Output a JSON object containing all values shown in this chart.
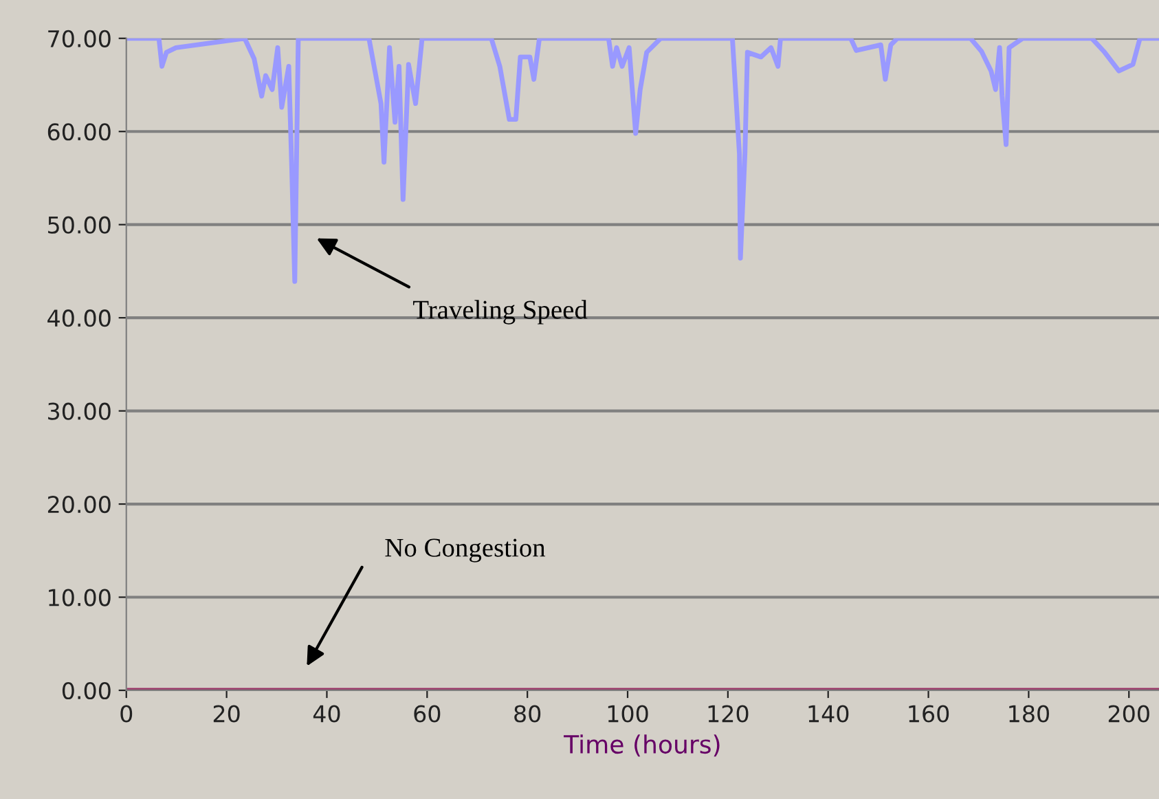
{
  "chart_data": {
    "type": "line",
    "xlabel": "Time (hours)",
    "series": [
      {
        "color": "#9999ff",
        "x": [
          0,
          6.5,
          7.1,
          8,
          9.9,
          23.6,
          25.5,
          27,
          27.8,
          29.1,
          30.2,
          31,
          32.4,
          33,
          33.6,
          34.3,
          48.4,
          50.8,
          51.4,
          52.5,
          53.6,
          54.4,
          55.2,
          56.3,
          57.7,
          59,
          72.8,
          74.5,
          76.4,
          77.7,
          78.6,
          80.5,
          81.3,
          82.4,
          96.2,
          97,
          97.8,
          98.9,
          100.3,
          101.6,
          102.5,
          103.8,
          106.6,
          120.9,
          122.3,
          122.5,
          123.4,
          123.9,
          126.6,
          128.6,
          130,
          130.5,
          144.5,
          145.6,
          150.5,
          151.4,
          152.5,
          153.8,
          168.4,
          170.6,
          172.5,
          173.4,
          174.2,
          174.7,
          175.5,
          176.1,
          178.8,
          192.6,
          195,
          198,
          200.8,
          202.2,
          206
        ],
        "values": [
          70,
          70,
          67.0,
          68.5,
          69,
          70,
          67.8,
          63.8,
          66,
          64.5,
          69,
          62.6,
          67,
          56.1,
          43.9,
          70,
          70,
          63,
          56.7,
          69,
          61,
          67,
          52.7,
          67.2,
          63,
          70,
          70,
          67,
          61.3,
          61.3,
          68,
          68,
          65.6,
          70,
          70,
          67,
          69,
          67,
          69,
          59.8,
          64.5,
          68.5,
          70,
          70,
          57.6,
          46.4,
          57.6,
          68.5,
          68,
          69,
          67,
          70,
          70,
          68.7,
          69.3,
          65.6,
          69.3,
          70,
          70,
          68.6,
          66.5,
          64.5,
          69,
          63.8,
          58.6,
          69,
          70,
          70,
          68.6,
          66.5,
          67.2,
          70,
          70
        ]
      },
      {
        "color": "#993366",
        "x": [
          0,
          206
        ],
        "values": [
          0,
          0
        ]
      }
    ],
    "xlim": [
      0,
      206
    ],
    "xticks": [
      0,
      20,
      40,
      60,
      80,
      100,
      120,
      140,
      160,
      180,
      200
    ],
    "ylim": [
      0,
      70
    ],
    "yticks": [
      {
        "value": 0,
        "label": "0.00"
      },
      {
        "value": 10,
        "label": "10.00"
      },
      {
        "value": 20,
        "label": "20.00"
      },
      {
        "value": 30,
        "label": "30.00"
      },
      {
        "value": 40,
        "label": "40.00"
      },
      {
        "value": 50,
        "label": "50.00"
      },
      {
        "value": 60,
        "label": "60.00"
      },
      {
        "value": 70,
        "label": "70.00"
      }
    ],
    "grid": "y",
    "legend": false,
    "marker": "none",
    "line_style": "solid",
    "annotations": [
      "Traveling Speed",
      "No Congestion"
    ]
  }
}
